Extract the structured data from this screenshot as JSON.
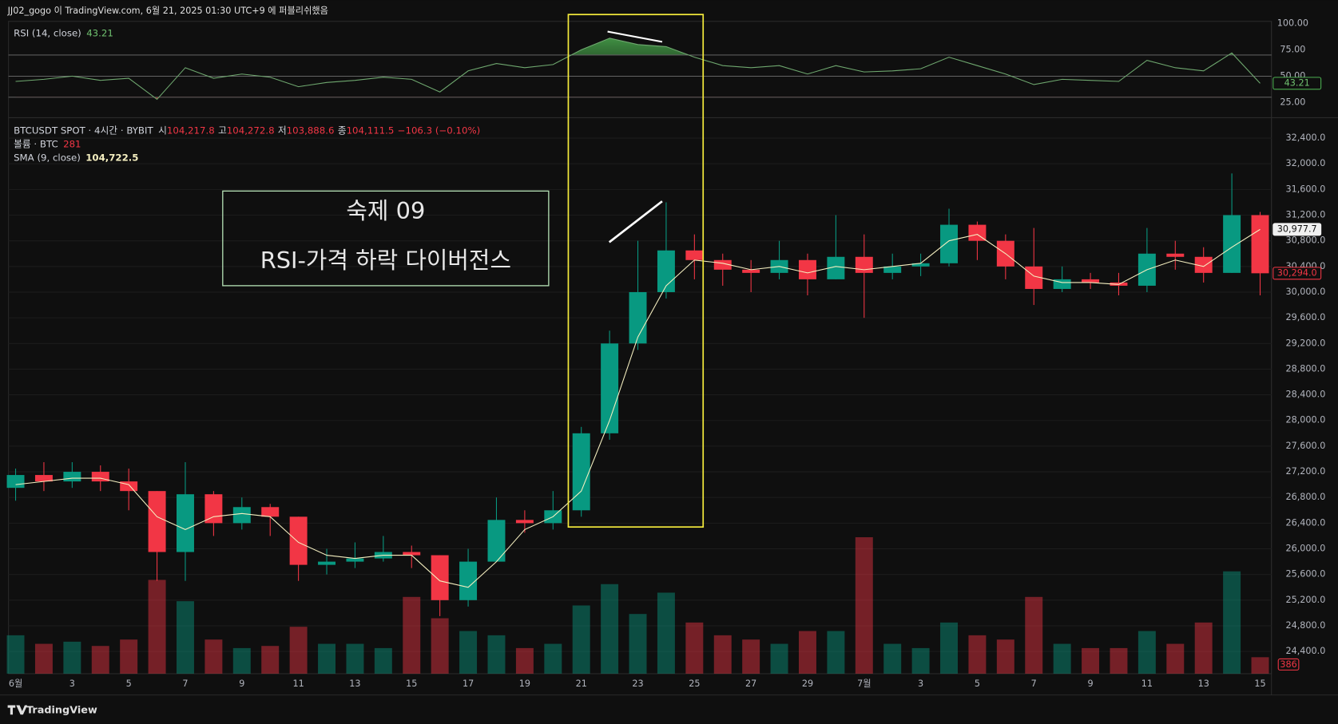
{
  "header": {
    "publisher": "JJ02_gogo 이 TradingView.com, 6월 21, 2025 01:30 UTC+9 에 퍼블리쉬했음"
  },
  "chart_data": {
    "type": "candlestick",
    "symbol": "BTCUSDT SPOT · 4시간 · BYBIT",
    "ohlc_legend": {
      "open_key": "시",
      "open": "104,217.8",
      "high_key": "고",
      "high": "104,272.8",
      "low_key": "저",
      "low": "103,888.6",
      "close_key": "종",
      "close": "104,111.5",
      "change": "−106.3 (−0.10%)"
    },
    "x": [
      0,
      1,
      2,
      3,
      4,
      5,
      6,
      7,
      8,
      9,
      10,
      11,
      12,
      13,
      14,
      15,
      16,
      17,
      18,
      19,
      20,
      21,
      22,
      23,
      24,
      25,
      26,
      27,
      28,
      29,
      30,
      31,
      32,
      33,
      34,
      35,
      36,
      37,
      38,
      39,
      40,
      41,
      42,
      43,
      44
    ],
    "open": [
      26950,
      27150,
      27050,
      27200,
      27050,
      26900,
      25950,
      26850,
      26400,
      26650,
      26500,
      25750,
      25800,
      25850,
      25950,
      25900,
      25200,
      25800,
      26450,
      26400,
      26600,
      27800,
      29200,
      30000,
      30650,
      30500,
      30350,
      30300,
      30500,
      30200,
      30550,
      30300,
      30400,
      30450,
      31050,
      30800,
      30400,
      30050,
      30200,
      30150,
      30100,
      30600,
      30550,
      30300,
      31200
    ],
    "high": [
      27250,
      27350,
      27350,
      27300,
      27250,
      26900,
      27350,
      26900,
      26800,
      26700,
      26500,
      26000,
      26100,
      26200,
      26050,
      25900,
      26000,
      26800,
      26600,
      26900,
      27900,
      29400,
      30800,
      31400,
      30900,
      30600,
      30500,
      30800,
      30600,
      31200,
      30900,
      30600,
      30600,
      31300,
      31100,
      30900,
      31000,
      30400,
      30300,
      30300,
      31000,
      30800,
      30700,
      31850,
      31250
    ],
    "low": [
      26750,
      26900,
      26950,
      26900,
      26600,
      25500,
      25500,
      26200,
      26300,
      26200,
      25500,
      25600,
      25700,
      25800,
      25700,
      24950,
      25100,
      25800,
      26250,
      26300,
      26500,
      27700,
      29100,
      29900,
      30200,
      30100,
      30000,
      30200,
      29950,
      30200,
      29600,
      30200,
      30250,
      30400,
      30500,
      30200,
      29800,
      30000,
      30050,
      29950,
      30000,
      30350,
      30150,
      30300,
      29950
    ],
    "close": [
      27150,
      27050,
      27200,
      27050,
      26900,
      25950,
      26850,
      26400,
      26650,
      26500,
      25750,
      25800,
      25850,
      25950,
      25900,
      25200,
      25800,
      26450,
      26400,
      26600,
      27800,
      29200,
      30000,
      30650,
      30500,
      30350,
      30300,
      30500,
      30200,
      30550,
      30300,
      30400,
      30450,
      31050,
      30800,
      30400,
      30050,
      30200,
      30150,
      30100,
      30600,
      30550,
      30300,
      31200,
      30294
    ],
    "last_price_label": "30,294.0",
    "up_color": "#089981",
    "down_color": "#f23645",
    "xlim": [
      -0.25,
      44.4
    ],
    "xticks": [
      {
        "value": 0,
        "label": "6월"
      },
      {
        "value": 2,
        "label": "3"
      },
      {
        "value": 4,
        "label": "5"
      },
      {
        "value": 6,
        "label": "7"
      },
      {
        "value": 8,
        "label": "9"
      },
      {
        "value": 10,
        "label": "11"
      },
      {
        "value": 12,
        "label": "13"
      },
      {
        "value": 14,
        "label": "15"
      },
      {
        "value": 16,
        "label": "17"
      },
      {
        "value": 18,
        "label": "19"
      },
      {
        "value": 20,
        "label": "21"
      },
      {
        "value": 22,
        "label": "23"
      },
      {
        "value": 24,
        "label": "25"
      },
      {
        "value": 26,
        "label": "27"
      },
      {
        "value": 28,
        "label": "29"
      },
      {
        "value": 30,
        "label": "7월"
      },
      {
        "value": 32,
        "label": "3"
      },
      {
        "value": 34,
        "label": "5"
      },
      {
        "value": 36,
        "label": "7"
      },
      {
        "value": 38,
        "label": "9"
      },
      {
        "value": 40,
        "label": "11"
      },
      {
        "value": 42,
        "label": "13"
      },
      {
        "value": 44,
        "label": "15"
      }
    ],
    "ylim": [
      24054,
      32692
    ],
    "yticks": [
      {
        "value": 24400,
        "label": "24,400.0"
      },
      {
        "value": 24800,
        "label": "24,800.0"
      },
      {
        "value": 25200,
        "label": "25,200.0"
      },
      {
        "value": 25600,
        "label": "25,600.0"
      },
      {
        "value": 26000,
        "label": "26,000.0"
      },
      {
        "value": 26400,
        "label": "26,400.0"
      },
      {
        "value": 26800,
        "label": "26,800.0"
      },
      {
        "value": 27200,
        "label": "27,200.0"
      },
      {
        "value": 27600,
        "label": "27,600.0"
      },
      {
        "value": 28000,
        "label": "28,000.0"
      },
      {
        "value": 28400,
        "label": "28,400.0"
      },
      {
        "value": 28800,
        "label": "28,800.0"
      },
      {
        "value": 29200,
        "label": "29,200.0"
      },
      {
        "value": 29600,
        "label": "29,600.0"
      },
      {
        "value": 30000,
        "label": "30,000.0"
      },
      {
        "value": 30400,
        "label": "30,400.0"
      },
      {
        "value": 30800,
        "label": "30,800.0"
      },
      {
        "value": 31200,
        "label": "31,200.0"
      },
      {
        "value": 31600,
        "label": "31,600.0"
      },
      {
        "value": 32000,
        "label": "32,000.0"
      },
      {
        "value": 32400,
        "label": "32,400.0"
      }
    ],
    "grid": true,
    "sma": {
      "name": "SMA (9, close)",
      "value_label": "104,722.5",
      "color": "#f5efc0",
      "values": [
        27000,
        27050,
        27100,
        27100,
        27000,
        26500,
        26300,
        26500,
        26550,
        26500,
        26100,
        25900,
        25850,
        25900,
        25900,
        25500,
        25400,
        25800,
        26300,
        26500,
        26900,
        28000,
        29300,
        30100,
        30500,
        30450,
        30350,
        30400,
        30300,
        30400,
        30350,
        30400,
        30450,
        30800,
        30900,
        30600,
        30250,
        30150,
        30150,
        30120,
        30350,
        30500,
        30400,
        30700,
        30977.7
      ],
      "last_label": "30,977.7"
    },
    "volume": {
      "name": "볼륨 · BTC",
      "value_label": "281",
      "lim": [
        0,
        4000
      ],
      "values": [
        900,
        700,
        750,
        650,
        800,
        2200,
        1700,
        800,
        600,
        650,
        1100,
        700,
        700,
        600,
        1800,
        1300,
        1000,
        900,
        600,
        700,
        1600,
        2100,
        1400,
        1900,
        1200,
        900,
        800,
        700,
        1000,
        1000,
        3200,
        700,
        600,
        1200,
        900,
        800,
        1800,
        700,
        600,
        600,
        1000,
        700,
        1200,
        2400,
        386
      ],
      "last_label": "386"
    },
    "rsi": {
      "name": "RSI (14, close)",
      "value_label": "43.21",
      "color": "#6fa86f",
      "values": [
        45,
        47,
        50,
        46,
        48,
        28,
        58,
        48,
        52,
        49,
        40,
        44,
        46,
        49,
        47,
        35,
        55,
        62,
        58,
        61,
        75,
        86,
        80,
        78,
        68,
        60,
        58,
        60,
        52,
        60,
        54,
        55,
        57,
        68,
        60,
        52,
        42,
        47,
        46,
        45,
        65,
        58,
        55,
        72,
        43.21
      ],
      "last_label": "43.21",
      "ylim": [
        13,
        102
      ],
      "yticks": [
        {
          "value": 100,
          "label": "100.00"
        },
        {
          "value": 75,
          "label": "75.00"
        },
        {
          "value": 50,
          "label": "50.00"
        },
        {
          "value": 25,
          "label": "25.00"
        }
      ],
      "bands": [
        70,
        50,
        30
      ]
    }
  },
  "annotation": {
    "title": "숙제 09",
    "subtitle": "RSI-가격 하락 다이버전스"
  },
  "footer": "TradingView"
}
